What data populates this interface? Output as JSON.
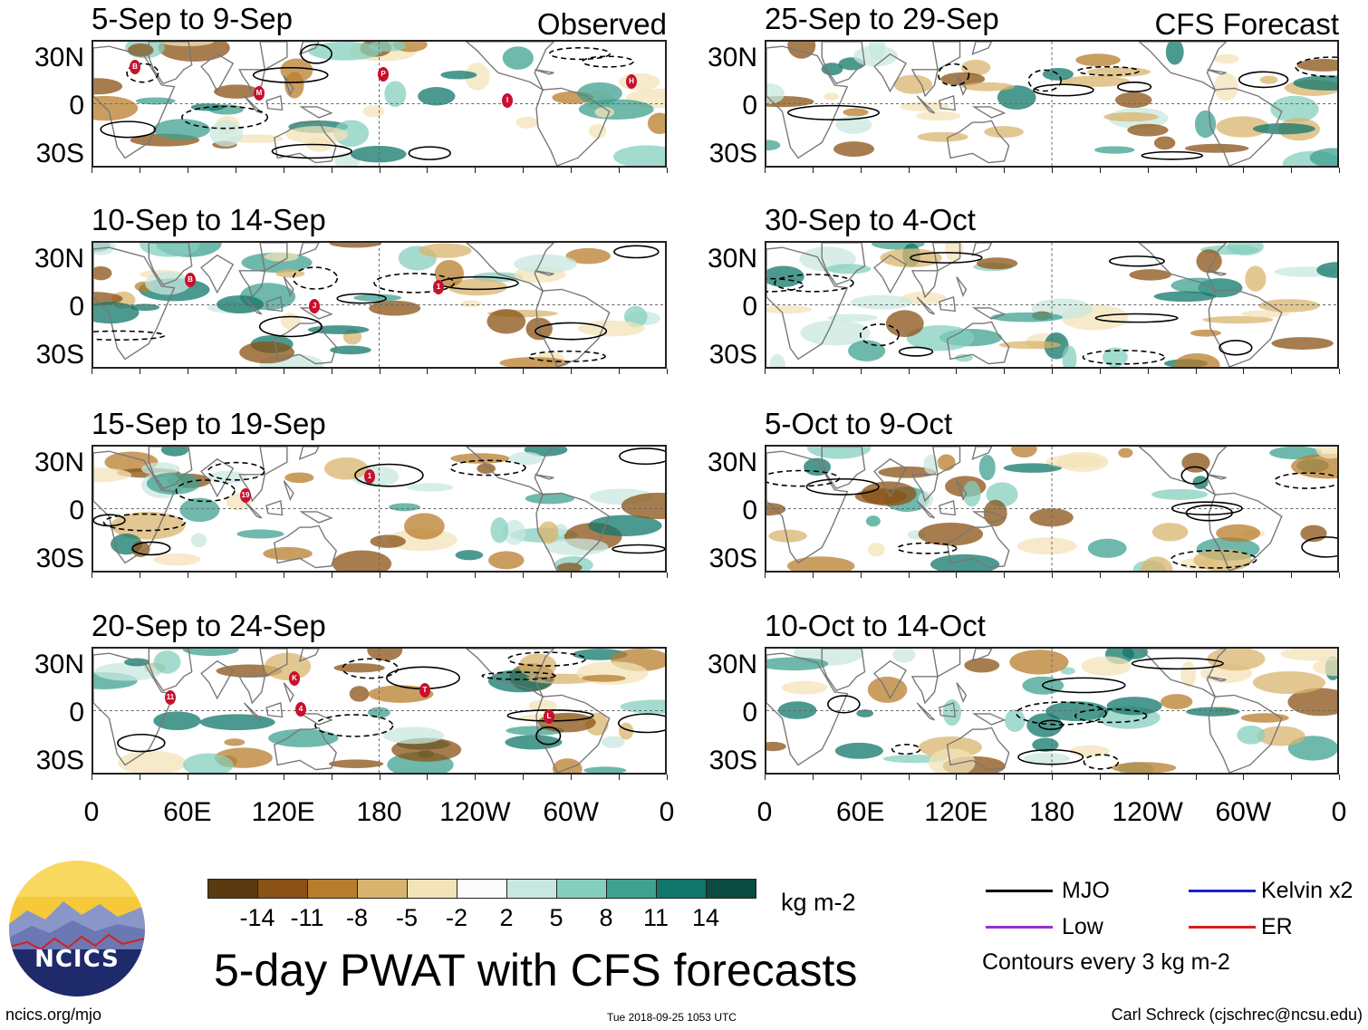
{
  "panels": [
    {
      "title": "5-Sep to 9-Sep",
      "source": "Observed",
      "storms": [
        "B",
        "M",
        "P",
        "I",
        "H"
      ]
    },
    {
      "title": "10-Sep to 14-Sep",
      "source": "",
      "storms": [
        "B",
        "J",
        "1"
      ]
    },
    {
      "title": "15-Sep to 19-Sep",
      "source": "",
      "storms": [
        "19",
        "1"
      ]
    },
    {
      "title": "20-Sep to 24-Sep",
      "source": "",
      "storms": [
        "4",
        "T",
        "L",
        "11",
        "K"
      ]
    },
    {
      "title": "25-Sep to 29-Sep",
      "source": "CFS Forecast",
      "storms": []
    },
    {
      "title": "30-Sep to 4-Oct",
      "source": "",
      "storms": []
    },
    {
      "title": "5-Oct to 9-Oct",
      "source": "",
      "storms": []
    },
    {
      "title": "10-Oct to 14-Oct",
      "source": "",
      "storms": []
    }
  ],
  "axes": {
    "lat_labels": [
      "30N",
      "0",
      "30S"
    ],
    "lon_labels": [
      "0",
      "60E",
      "120E",
      "180",
      "120W",
      "60W",
      "0"
    ]
  },
  "colorbar": {
    "colors": [
      "#5a3a10",
      "#8a5214",
      "#b87d2c",
      "#d9b46e",
      "#f3e3b8",
      "#fbfbfb",
      "#c8e8df",
      "#86cfbf",
      "#3fa090",
      "#10776a",
      "#0a4a40"
    ],
    "ticks": [
      "-14",
      "-11",
      "-8",
      "-5",
      "-2",
      "2",
      "5",
      "8",
      "11",
      "14"
    ],
    "units": "kg m-2"
  },
  "title": "5-day PWAT with CFS forecasts",
  "legend": {
    "items": [
      {
        "label": "MJO",
        "color": "#000000"
      },
      {
        "label": "Kelvin x2",
        "color": "#1a22c8"
      },
      {
        "label": "Low",
        "color": "#9b30d0"
      },
      {
        "label": "ER",
        "color": "#d42020"
      }
    ],
    "contour_note": "Contours every 3 kg m-2"
  },
  "footer": {
    "left": "ncics.org/mjo",
    "timestamp": "Tue 2018-09-25 1053 UTC",
    "right": "Carl Schreck (cjschrec@ncsu.edu)"
  },
  "logo": {
    "text": "NCICS"
  }
}
